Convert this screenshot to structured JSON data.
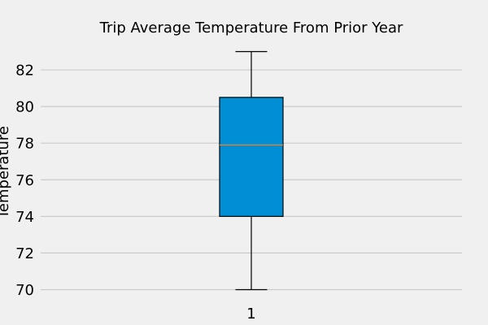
{
  "chart_data": {
    "type": "boxplot",
    "title": "Trip Average Temperature From Prior Year",
    "xlabel": "",
    "ylabel": "Temperature",
    "categories": [
      "1"
    ],
    "boxes": [
      {
        "category": "1",
        "whisker_low": 70,
        "q1": 74,
        "median": 77.9,
        "q3": 80.5,
        "whisker_high": 83
      }
    ],
    "y_ticks": [
      "70",
      "72",
      "74",
      "76",
      "78",
      "80",
      "82"
    ],
    "ylim": [
      69.4,
      83.6
    ],
    "grid": "horizontal",
    "legend": "none",
    "colors": {
      "background": "#f0f0f0",
      "grid": "#cbcbcb",
      "box_fill": "#008fd5",
      "box_edge": "#000000",
      "median": "#e5812f",
      "whisker": "#000000"
    }
  }
}
